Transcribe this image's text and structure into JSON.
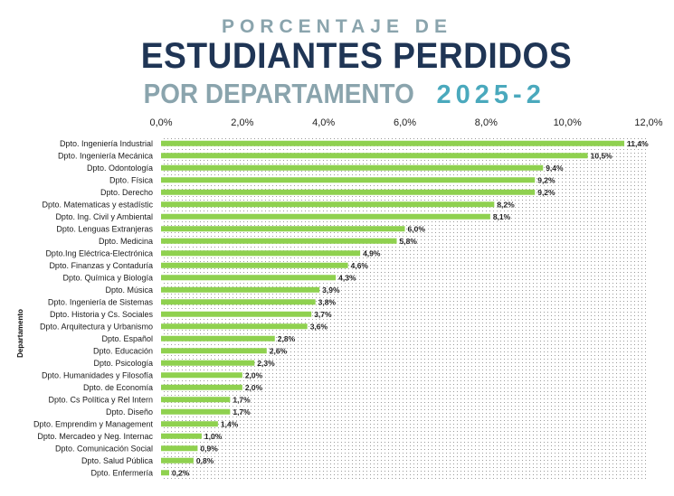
{
  "header": {
    "line1": "PORCENTAJE DE",
    "line2": "ESTUDIANTES PERDIDOS",
    "line3": "POR DEPARTAMENTO",
    "year": "2025-2"
  },
  "colors": {
    "bar": "#8fd14f",
    "title_dark": "#1f3555",
    "title_gray": "#8aa4ad",
    "title_teal": "#4aa9bd"
  },
  "chart_data": {
    "type": "bar",
    "orientation": "horizontal",
    "title": "PORCENTAJE DE ESTUDIANTES PERDIDOS POR DEPARTAMENTO 2025-2",
    "ylabel": "Departamento",
    "xlabel": "",
    "xlim": [
      0,
      12
    ],
    "x_ticks": [
      "0,0%",
      "2,0%",
      "4,0%",
      "6,0%",
      "8,0%",
      "10,0%",
      "12,0%"
    ],
    "x_axis_position": "top",
    "categories": [
      "Dpto. Ingeniería Industrial",
      "Dpto. Ingeniería Mecánica",
      "Dpto. Odontología",
      "Dpto. Física",
      "Dpto. Derecho",
      "Dpto. Matematicas y estadístic",
      "Dpto. Ing. Civil y Ambiental",
      "Dpto. Lenguas Extranjeras",
      "Dpto. Medicina",
      "Dpto.Ing Eléctrica-Electrónica",
      "Dpto. Finanzas y Contaduría",
      "Dpto. Química y Biología",
      "Dpto. Música",
      "Dpto. Ingeniería de Sistemas",
      "Dpto. Historia y Cs. Sociales",
      "Dpto. Arquitectura y Urbanismo",
      "Dpto. Español",
      "Dpto. Educación",
      "Dpto. Psicología",
      "Dpto. Humanidades y Filosofía",
      "Dpto. de Economía",
      "Dpto. Cs Política y Rel Intern",
      "Dpto. Diseño",
      "Dpto. Emprendim y Management",
      "Dpto. Mercadeo y Neg. Internac",
      "Dpto. Comunicación Social",
      "Dpto. Salud Pública",
      "Dpto. Enfermería"
    ],
    "values": [
      11.4,
      10.5,
      9.4,
      9.2,
      9.2,
      8.2,
      8.1,
      6.0,
      5.8,
      4.9,
      4.6,
      4.3,
      3.9,
      3.8,
      3.7,
      3.6,
      2.8,
      2.6,
      2.3,
      2.0,
      2.0,
      1.7,
      1.7,
      1.4,
      1.0,
      0.9,
      0.8,
      0.2
    ],
    "data_labels": [
      "11,4%",
      "10,5%",
      "9,4%",
      "9,2%",
      "9,2%",
      "8,2%",
      "8,1%",
      "6,0%",
      "5,8%",
      "4,9%",
      "4,6%",
      "4,3%",
      "3,9%",
      "3,8%",
      "3,7%",
      "3,6%",
      "2,8%",
      "2,6%",
      "2,3%",
      "2,0%",
      "2,0%",
      "1,7%",
      "1,7%",
      "1,4%",
      "1,0%",
      "0,9%",
      "0,8%",
      "0,2%"
    ]
  }
}
